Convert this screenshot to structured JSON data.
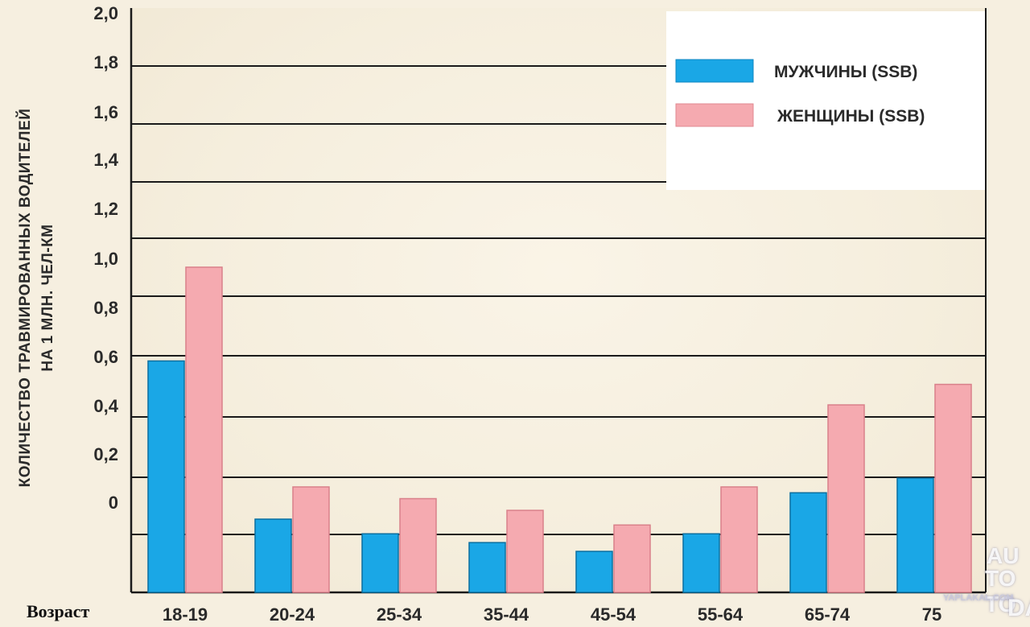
{
  "chart_data": {
    "type": "bar",
    "title": "",
    "ylabel_lines": [
      "КОЛИЧЕСТВО ТРАВМИРОВАННЫХ ВОДИТЕЛЕЙ",
      "НА 1 МЛН. ЧЕЛ-КМ"
    ],
    "xlabel": "Возраст",
    "categories": [
      "18-19",
      "20-24",
      "25-34",
      "35-44",
      "45-54",
      "55-64",
      "65-74",
      "75"
    ],
    "y_tick_labels": [
      "2,0",
      "1,8",
      "1,6",
      "1,4",
      "1,2",
      "1,0",
      "0,8",
      "0,6",
      "0,4",
      "0,2",
      "0"
    ],
    "series": [
      {
        "name": "МУЖЧИНЫ (SSB)",
        "color": "#1aa7e6",
        "values": [
          0.79,
          0.25,
          0.2,
          0.17,
          0.14,
          0.2,
          0.34,
          0.39
        ]
      },
      {
        "name": "ЖЕНЩИНЫ (SSB)",
        "color": "#f5aab0",
        "values": [
          1.11,
          0.36,
          0.32,
          0.28,
          0.23,
          0.36,
          0.64,
          0.71
        ]
      }
    ],
    "legend_position": "top-right",
    "grid": true
  },
  "watermark": {
    "line1": "AU",
    "line2": "TO TO",
    "site": "YAPLAKAL.COM",
    "line3": "DAY"
  }
}
